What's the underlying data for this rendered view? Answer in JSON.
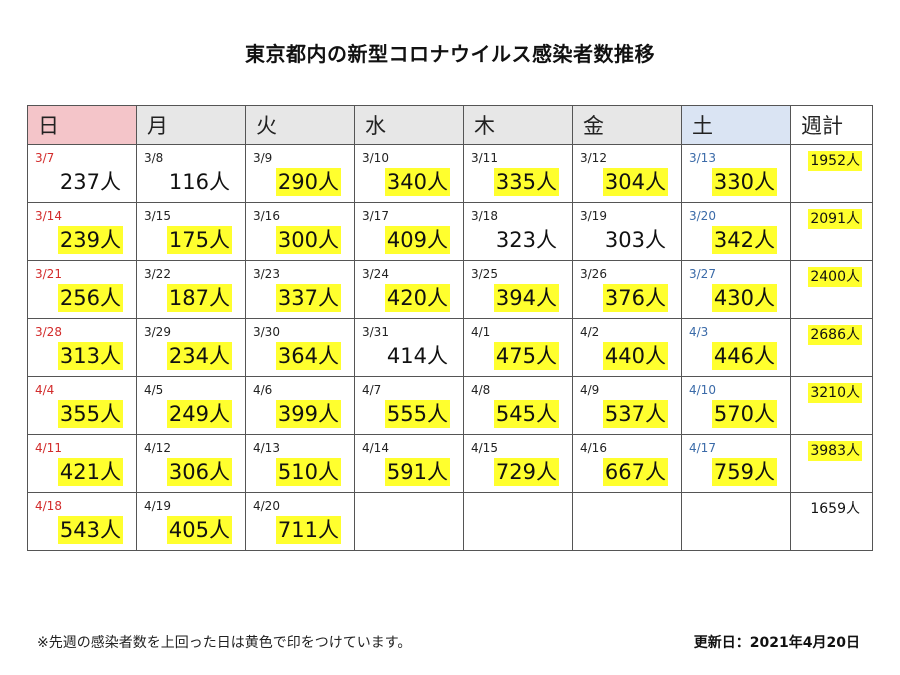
{
  "title": "東京都内の新型コロナウイルス感染者数推移",
  "headers": [
    "日",
    "月",
    "火",
    "水",
    "木",
    "金",
    "土",
    "週計"
  ],
  "weeks": [
    {
      "days": [
        {
          "date": "3/7",
          "count": "237人",
          "highlight": false
        },
        {
          "date": "3/8",
          "count": "116人",
          "highlight": false
        },
        {
          "date": "3/9",
          "count": "290人",
          "highlight": true
        },
        {
          "date": "3/10",
          "count": "340人",
          "highlight": true
        },
        {
          "date": "3/11",
          "count": "335人",
          "highlight": true
        },
        {
          "date": "3/12",
          "count": "304人",
          "highlight": true
        },
        {
          "date": "3/13",
          "count": "330人",
          "highlight": true
        }
      ],
      "total": "1952人",
      "total_highlight": true
    },
    {
      "days": [
        {
          "date": "3/14",
          "count": "239人",
          "highlight": true
        },
        {
          "date": "3/15",
          "count": "175人",
          "highlight": true
        },
        {
          "date": "3/16",
          "count": "300人",
          "highlight": true
        },
        {
          "date": "3/17",
          "count": "409人",
          "highlight": true
        },
        {
          "date": "3/18",
          "count": "323人",
          "highlight": false
        },
        {
          "date": "3/19",
          "count": "303人",
          "highlight": false
        },
        {
          "date": "3/20",
          "count": "342人",
          "highlight": true
        }
      ],
      "total": "2091人",
      "total_highlight": true
    },
    {
      "days": [
        {
          "date": "3/21",
          "count": "256人",
          "highlight": true
        },
        {
          "date": "3/22",
          "count": "187人",
          "highlight": true
        },
        {
          "date": "3/23",
          "count": "337人",
          "highlight": true
        },
        {
          "date": "3/24",
          "count": "420人",
          "highlight": true
        },
        {
          "date": "3/25",
          "count": "394人",
          "highlight": true
        },
        {
          "date": "3/26",
          "count": "376人",
          "highlight": true
        },
        {
          "date": "3/27",
          "count": "430人",
          "highlight": true
        }
      ],
      "total": "2400人",
      "total_highlight": true
    },
    {
      "days": [
        {
          "date": "3/28",
          "count": "313人",
          "highlight": true
        },
        {
          "date": "3/29",
          "count": "234人",
          "highlight": true
        },
        {
          "date": "3/30",
          "count": "364人",
          "highlight": true
        },
        {
          "date": "3/31",
          "count": "414人",
          "highlight": false
        },
        {
          "date": "4/1",
          "count": "475人",
          "highlight": true
        },
        {
          "date": "4/2",
          "count": "440人",
          "highlight": true
        },
        {
          "date": "4/3",
          "count": "446人",
          "highlight": true
        }
      ],
      "total": "2686人",
      "total_highlight": true
    },
    {
      "days": [
        {
          "date": "4/4",
          "count": "355人",
          "highlight": true
        },
        {
          "date": "4/5",
          "count": "249人",
          "highlight": true
        },
        {
          "date": "4/6",
          "count": "399人",
          "highlight": true
        },
        {
          "date": "4/7",
          "count": "555人",
          "highlight": true
        },
        {
          "date": "4/8",
          "count": "545人",
          "highlight": true
        },
        {
          "date": "4/9",
          "count": "537人",
          "highlight": true
        },
        {
          "date": "4/10",
          "count": "570人",
          "highlight": true
        }
      ],
      "total": "3210人",
      "total_highlight": true
    },
    {
      "days": [
        {
          "date": "4/11",
          "count": "421人",
          "highlight": true
        },
        {
          "date": "4/12",
          "count": "306人",
          "highlight": true
        },
        {
          "date": "4/13",
          "count": "510人",
          "highlight": true
        },
        {
          "date": "4/14",
          "count": "591人",
          "highlight": true
        },
        {
          "date": "4/15",
          "count": "729人",
          "highlight": true
        },
        {
          "date": "4/16",
          "count": "667人",
          "highlight": true
        },
        {
          "date": "4/17",
          "count": "759人",
          "highlight": true
        }
      ],
      "total": "3983人",
      "total_highlight": true
    },
    {
      "days": [
        {
          "date": "4/18",
          "count": "543人",
          "highlight": true
        },
        {
          "date": "4/19",
          "count": "405人",
          "highlight": true
        },
        {
          "date": "4/20",
          "count": "711人",
          "highlight": true
        },
        null,
        null,
        null,
        null
      ],
      "total": "1659人",
      "total_highlight": false
    }
  ],
  "colors": {
    "highlight": "#ffff2e",
    "sunday_header": "#f4c5c9",
    "saturday_header": "#dae4f3",
    "weekday_header": "#e7e7e7",
    "sunday_date": "#d22b2b",
    "saturday_date": "#3a6aa8"
  },
  "note": "※先週の感染者数を上回った日は黄色で印をつけています。",
  "updated": "更新日：2021年4月20日"
}
